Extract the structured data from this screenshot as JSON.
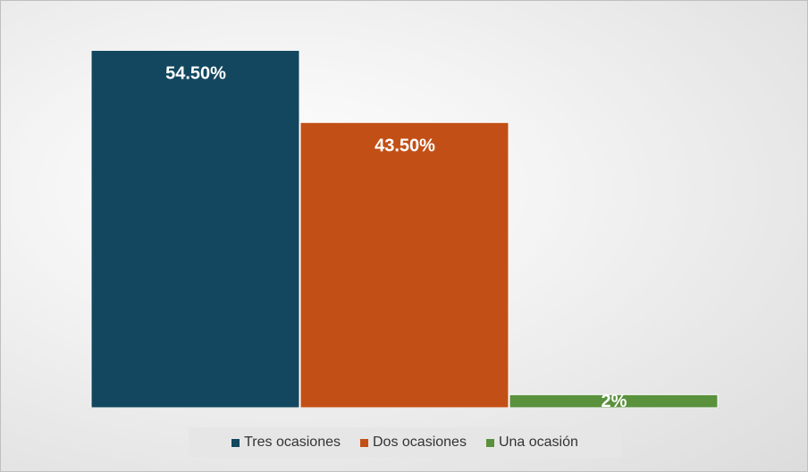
{
  "chart_data": {
    "type": "bar",
    "title": "",
    "xlabel": "",
    "ylabel": "",
    "ylim": [
      0,
      60
    ],
    "grid": false,
    "legend_position": "bottom",
    "bars": [
      {
        "name": "Tres ocasiones",
        "value": 54.5,
        "label": "54.50%",
        "color": "#12475f"
      },
      {
        "name": "Dos ocasiones",
        "value": 43.5,
        "label": "43.50%",
        "color": "#c25016"
      },
      {
        "name": "Una ocasión",
        "value": 2,
        "label": "2%",
        "color": "#5a913d"
      }
    ]
  }
}
